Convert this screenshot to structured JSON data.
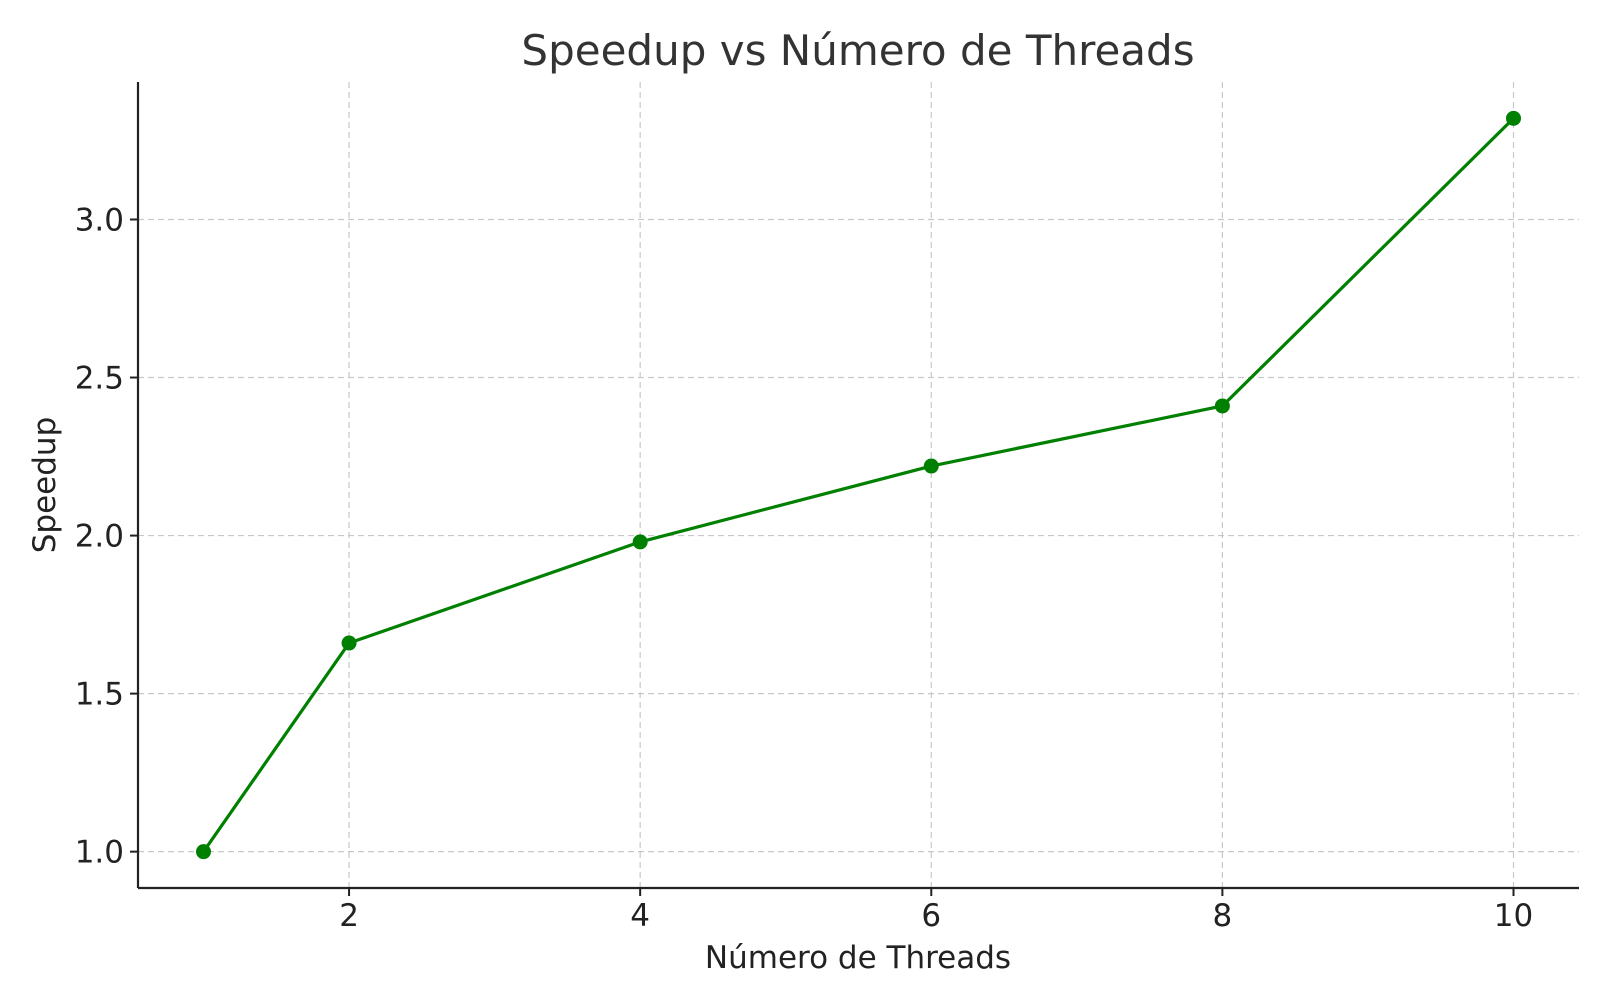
{
  "chart_data": {
    "type": "line",
    "title": "Speedup vs Número de Threads",
    "xlabel": "Número de Threads",
    "ylabel": "Speedup",
    "x": [
      1,
      2,
      4,
      6,
      8,
      10
    ],
    "series": [
      {
        "values": [
          1.0,
          1.66,
          1.98,
          2.22,
          2.41,
          3.32
        ],
        "color": "#008000",
        "marker": "circle"
      }
    ],
    "xticks": [
      2,
      4,
      6,
      8,
      10
    ],
    "xtick_labels": [
      "2",
      "4",
      "6",
      "8",
      "10"
    ],
    "yticks": [
      1.0,
      1.5,
      2.0,
      2.5,
      3.0
    ],
    "ytick_labels": [
      "1.0",
      "1.5",
      "2.0",
      "2.5",
      "3.0"
    ],
    "xlim": [
      0.55,
      10.45
    ],
    "ylim": [
      0.885,
      3.435
    ],
    "grid": true
  }
}
